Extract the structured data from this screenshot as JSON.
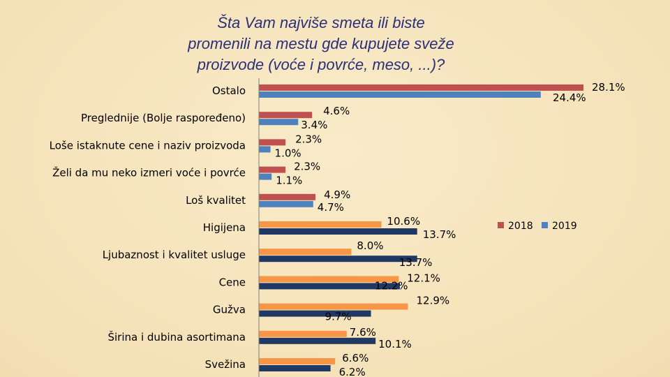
{
  "title": "Šta Vam najviše smeta ili biste\npromenili na mestu gde kupujete sveže\nproizvode (voće i povrće, meso, ...)?",
  "colors": {
    "background": "#f6e4bd",
    "title": "#2a2f7a",
    "axis": "#7f7f7f",
    "bar_2018_top": "#c0504d",
    "bar_2019_top": "#4f81bd",
    "bar_2018_bottom": "#f79646",
    "bar_2019_bottom": "#1f3864"
  },
  "chart_data": {
    "type": "bar",
    "orientation": "horizontal",
    "xlim": [
      0,
      30
    ],
    "grid": false,
    "legend": "right",
    "categories": [
      "Ostalo",
      "Preglednije (Bolje raspoređeno)",
      "Loše istaknute cene i naziv proizvoda",
      "Želi da mu neko izmeri voće i povrće",
      "Loš kvalitet",
      "Higijena",
      "Ljubaznost i kvalitet usluge",
      "Cene",
      "Gužva",
      "Širina i dubina asortimana",
      "Svežina"
    ],
    "series": [
      {
        "name": "2018",
        "values": [
          28.1,
          4.6,
          2.3,
          2.3,
          4.9,
          10.6,
          8.0,
          12.1,
          12.9,
          7.6,
          6.6
        ],
        "labels": [
          "28.1%",
          "4.6%",
          "2.3%",
          "2.3%",
          "4.9%",
          "10.6%",
          "8.0%",
          "12.1%",
          "12.9%",
          "7.6%",
          "6.6%"
        ]
      },
      {
        "name": "2019",
        "values": [
          24.4,
          3.4,
          1.0,
          1.1,
          4.7,
          13.7,
          13.7,
          12.2,
          9.7,
          10.1,
          6.2
        ],
        "labels": [
          "24.4%",
          "3.4%",
          "1.0%",
          "1.1%",
          "4.7%",
          "13.7%",
          "13.7%",
          "12.2%",
          "9.7%",
          "10.1%",
          "6.2%"
        ]
      }
    ]
  }
}
